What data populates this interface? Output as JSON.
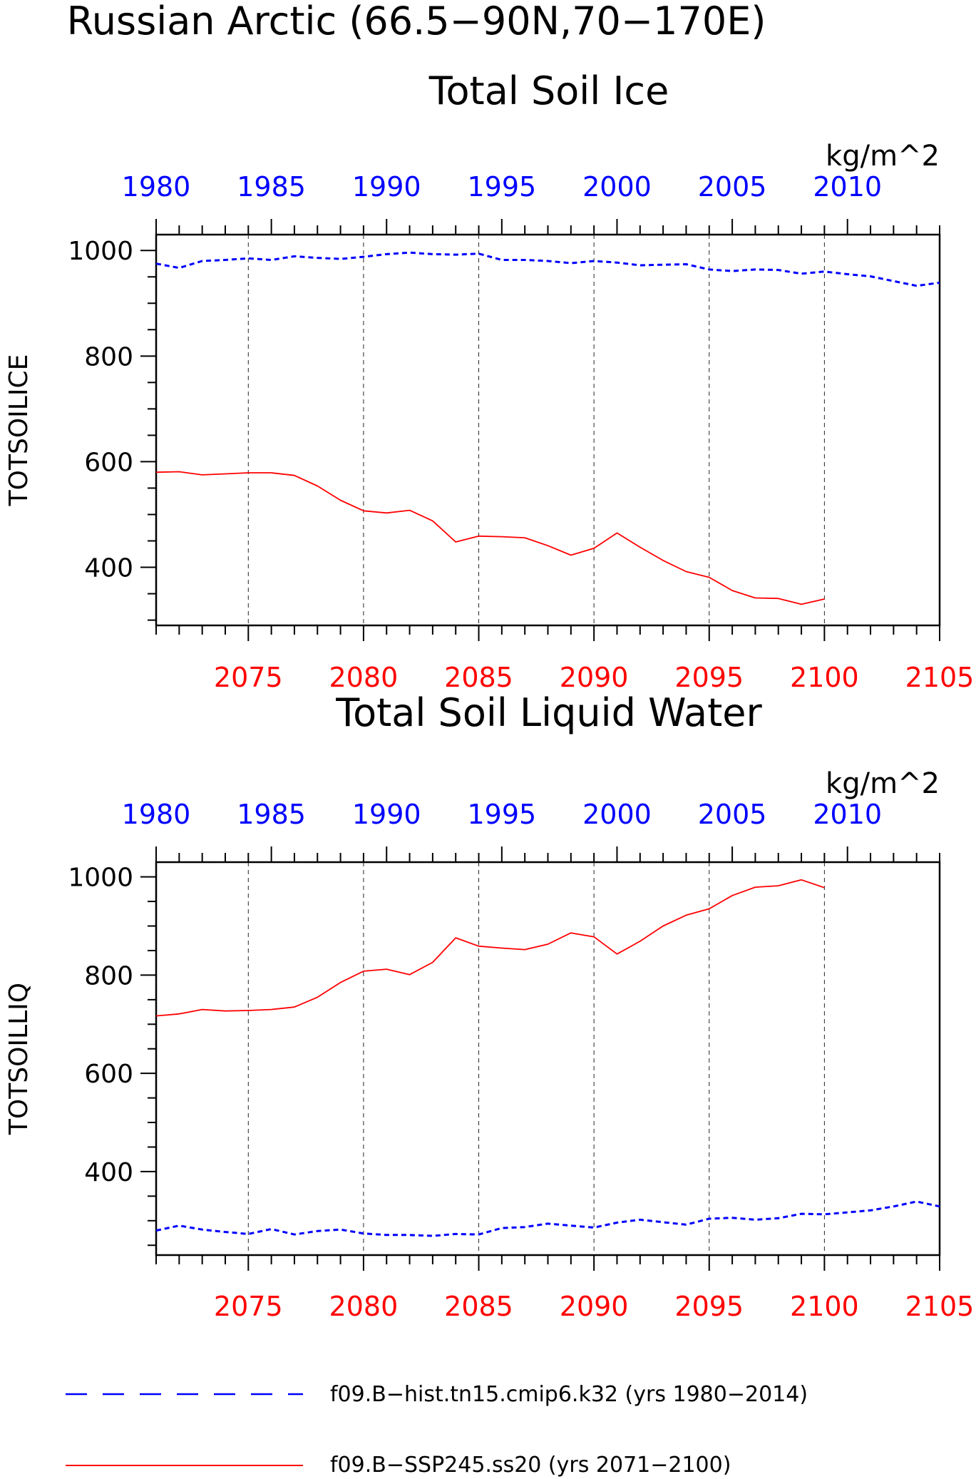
{
  "main_title": "Russian Arctic (66.5−90N,70−170E)",
  "legend": {
    "hist_label": "f09.B−hist.tn15.cmip6.k32 (yrs 1980−2014)",
    "ssp_label": "f09.B−SSP245.ss20 (yrs 2071−2100)"
  },
  "colors": {
    "hist": "#0000ff",
    "ssp": "#ff0000",
    "axis": "#000000",
    "grid": "#000000"
  },
  "chart_data": [
    {
      "type": "line",
      "title": "Total Soil Ice",
      "ylabel": "TOTSOILICE",
      "units": "kg/m^2",
      "ylim": [
        290,
        1030
      ],
      "y_ticks": [
        400,
        600,
        800,
        1000
      ],
      "y_tick_labels": [
        "400",
        "600",
        "800",
        "1000"
      ],
      "bottom_axis": {
        "range": [
          2071,
          2105
        ],
        "tick_labels": [
          "2075",
          "2080",
          "2085",
          "2090",
          "2095",
          "2100",
          "2105"
        ]
      },
      "top_axis": {
        "range": [
          1980,
          2014
        ],
        "tick_labels": [
          "1980",
          "1985",
          "1990",
          "1995",
          "2000",
          "2005",
          "2010"
        ]
      },
      "grid": "dashed vertical at major bottom ticks",
      "series": [
        {
          "name": "f09.B−hist.tn15.cmip6.k32",
          "axis": "top",
          "style": "dashed",
          "x": [
            1980,
            1981,
            1982,
            1983,
            1984,
            1985,
            1986,
            1987,
            1988,
            1989,
            1990,
            1991,
            1992,
            1993,
            1994,
            1995,
            1996,
            1997,
            1998,
            1999,
            2000,
            2001,
            2002,
            2003,
            2004,
            2005,
            2006,
            2007,
            2008,
            2009,
            2010,
            2011,
            2012,
            2013,
            2014
          ],
          "values": [
            975,
            967,
            980,
            982,
            985,
            982,
            989,
            986,
            984,
            988,
            993,
            996,
            993,
            992,
            994,
            982,
            982,
            980,
            976,
            980,
            977,
            972,
            973,
            974,
            964,
            961,
            964,
            963,
            956,
            960,
            955,
            951,
            942,
            933,
            939
          ]
        },
        {
          "name": "f09.B−SSP245.ss20",
          "axis": "bottom",
          "style": "solid",
          "x": [
            2071,
            2072,
            2073,
            2074,
            2075,
            2076,
            2077,
            2078,
            2079,
            2080,
            2081,
            2082,
            2083,
            2084,
            2085,
            2086,
            2087,
            2088,
            2089,
            2090,
            2091,
            2092,
            2093,
            2094,
            2095,
            2096,
            2097,
            2098,
            2099,
            2100
          ],
          "values": [
            580,
            581,
            575,
            577,
            579,
            579,
            574,
            554,
            527,
            507,
            503,
            508,
            488,
            448,
            459,
            458,
            456,
            441,
            423,
            436,
            465,
            438,
            413,
            392,
            381,
            356,
            342,
            341,
            330,
            340
          ]
        }
      ]
    },
    {
      "type": "line",
      "title": "Total Soil Liquid Water",
      "ylabel": "TOTSOILLIQ",
      "units": "kg/m^2",
      "ylim": [
        230,
        1030
      ],
      "y_ticks": [
        400,
        600,
        800,
        1000
      ],
      "y_tick_labels": [
        "400",
        "600",
        "800",
        "1000"
      ],
      "bottom_axis": {
        "range": [
          2071,
          2105
        ],
        "tick_labels": [
          "2075",
          "2080",
          "2085",
          "2090",
          "2095",
          "2100",
          "2105"
        ]
      },
      "top_axis": {
        "range": [
          1980,
          2014
        ],
        "tick_labels": [
          "1980",
          "1985",
          "1990",
          "1995",
          "2000",
          "2005",
          "2010"
        ]
      },
      "grid": "dashed vertical at major bottom ticks",
      "series": [
        {
          "name": "f09.B−hist.tn15.cmip6.k32",
          "axis": "top",
          "style": "dashed",
          "x": [
            1980,
            1981,
            1982,
            1983,
            1984,
            1985,
            1986,
            1987,
            1988,
            1989,
            1990,
            1991,
            1992,
            1993,
            1994,
            1995,
            1996,
            1997,
            1998,
            1999,
            2000,
            2001,
            2002,
            2003,
            2004,
            2005,
            2006,
            2007,
            2008,
            2009,
            2010,
            2011,
            2012,
            2013,
            2014
          ],
          "values": [
            280,
            290,
            282,
            277,
            273,
            283,
            272,
            279,
            282,
            274,
            271,
            271,
            269,
            273,
            272,
            285,
            287,
            294,
            290,
            286,
            296,
            302,
            297,
            292,
            304,
            306,
            302,
            305,
            314,
            313,
            317,
            321,
            329,
            339,
            329
          ]
        },
        {
          "name": "f09.B−SSP245.ss20",
          "axis": "bottom",
          "style": "solid",
          "x": [
            2071,
            2072,
            2073,
            2074,
            2075,
            2076,
            2077,
            2078,
            2079,
            2080,
            2081,
            2082,
            2083,
            2084,
            2085,
            2086,
            2087,
            2088,
            2089,
            2090,
            2091,
            2092,
            2093,
            2094,
            2095,
            2096,
            2097,
            2098,
            2099,
            2100
          ],
          "values": [
            717,
            721,
            730,
            727,
            728,
            730,
            735,
            755,
            785,
            808,
            812,
            801,
            826,
            876,
            859,
            855,
            852,
            863,
            886,
            878,
            843,
            869,
            900,
            922,
            935,
            962,
            979,
            982,
            994,
            978
          ]
        }
      ]
    }
  ]
}
